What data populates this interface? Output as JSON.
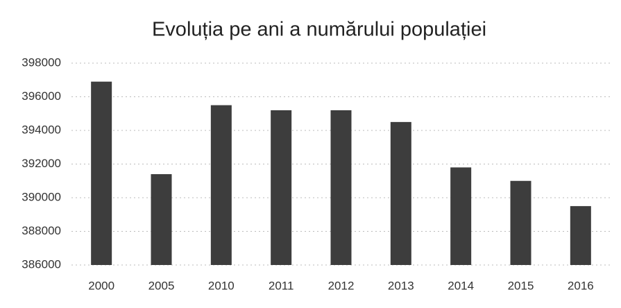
{
  "chart_data": {
    "type": "bar",
    "title": "Evoluția pe ani a numărului populației",
    "categories": [
      "2000",
      "2005",
      "2010",
      "2011",
      "2012",
      "2013",
      "2014",
      "2015",
      "2016"
    ],
    "values": [
      396900,
      391400,
      395500,
      395200,
      395200,
      394500,
      391800,
      391000,
      389500
    ],
    "color": "#3d3d3d",
    "ylim": [
      386000,
      398000
    ],
    "yticks": [
      386000,
      388000,
      390000,
      392000,
      394000,
      396000,
      398000
    ],
    "grid": true
  }
}
